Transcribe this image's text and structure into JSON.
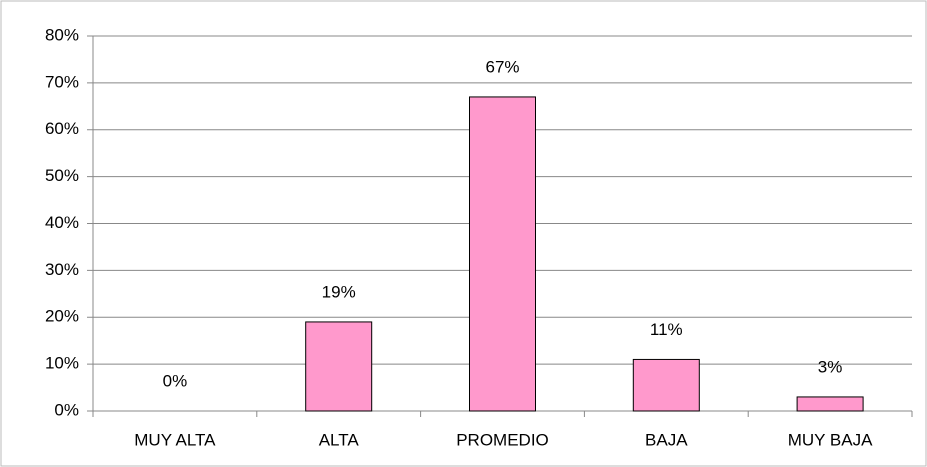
{
  "chart_data": {
    "type": "bar",
    "categories": [
      "MUY ALTA",
      "ALTA",
      "PROMEDIO",
      "BAJA",
      "MUY BAJA"
    ],
    "values": [
      0,
      19,
      67,
      11,
      3
    ],
    "value_labels": [
      "0%",
      "19%",
      "67%",
      "11%",
      "3%"
    ],
    "color": "#ff99cc",
    "ylim": [
      0,
      80
    ],
    "yticks": [
      {
        "value": 0,
        "label": "0%"
      },
      {
        "value": 10,
        "label": "10%"
      },
      {
        "value": 20,
        "label": "20%"
      },
      {
        "value": 30,
        "label": "30%"
      },
      {
        "value": 40,
        "label": "40%"
      },
      {
        "value": 50,
        "label": "50%"
      },
      {
        "value": 60,
        "label": "60%"
      },
      {
        "value": 70,
        "label": "70%"
      },
      {
        "value": 80,
        "label": "80%"
      }
    ],
    "grid": true
  }
}
